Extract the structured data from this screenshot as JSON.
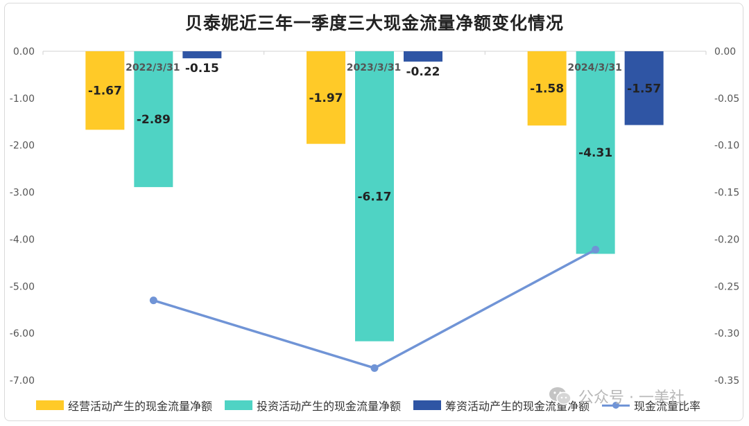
{
  "title": "贝泰妮近三年一季度三大现金流量净额变化情况",
  "chart_data": {
    "type": "bar",
    "categories": [
      "2022/3/31",
      "2023/3/31",
      "2024/3/31"
    ],
    "series": [
      {
        "name": "经营活动产生的现金流量净额",
        "type": "bar",
        "axis": "left",
        "color": "#FFCA28",
        "values": [
          -1.67,
          -1.97,
          -1.58
        ]
      },
      {
        "name": "投资活动产生的现金流量净额",
        "type": "bar",
        "axis": "left",
        "color": "#4FD3C4",
        "values": [
          -2.89,
          -6.17,
          -4.31
        ]
      },
      {
        "name": "筹资活动产生的现金流量净额",
        "type": "bar",
        "axis": "left",
        "color": "#2F55A4",
        "values": [
          -0.15,
          -0.22,
          -1.57
        ]
      },
      {
        "name": "现金流量比率",
        "type": "line",
        "axis": "right",
        "color": "#7094D6",
        "values": [
          -0.265,
          -0.337,
          -0.211
        ]
      }
    ],
    "y_left": {
      "range": [
        -7,
        0
      ],
      "ticks": [
        "0.00",
        "-1.00",
        "-2.00",
        "-3.00",
        "-4.00",
        "-5.00",
        "-6.00",
        "-7.00"
      ]
    },
    "y_right": {
      "range": [
        -0.35,
        0
      ],
      "ticks": [
        "0.00",
        "-0.05",
        "-0.10",
        "-0.15",
        "-0.20",
        "-0.25",
        "-0.30",
        "-0.35"
      ]
    },
    "legend_position": "bottom",
    "grid": false
  },
  "watermark": {
    "text": "公众号 · 一美社",
    "icon": "wechat-icon"
  }
}
